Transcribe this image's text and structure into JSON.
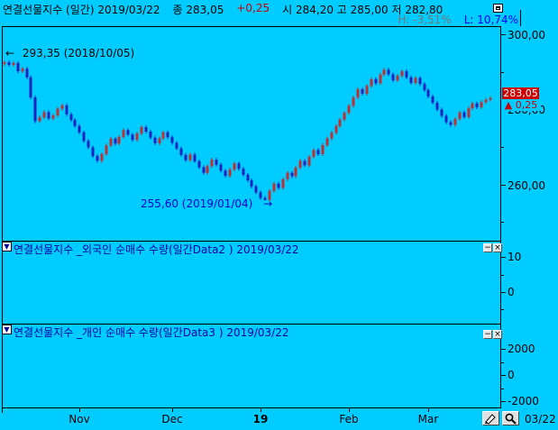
{
  "window": {
    "bg_color": "#00CCFF",
    "title": {
      "instrument": "연결선물지수 (일간) 2019/03/22",
      "close_label": "종",
      "close_value": "283,05",
      "change": "+0,25",
      "open_high_low": "시 284,20 고 285,00 저 282,80",
      "high_pct": "H: -3,51%",
      "low_pct": "L: 10,74%"
    }
  },
  "main_panel": {
    "high_annotation": {
      "arrow": "←",
      "text": "293,35 (2018/10/05)"
    },
    "low_annotation": {
      "text": "255,60 (2019/01/04)",
      "arrow": "→"
    },
    "price_badge": {
      "value": "283,05",
      "change": "▲ 0,25"
    }
  },
  "panel2": {
    "dropdown_glyph": "▼",
    "title": "연결선물지수 _외국인 순매수 수량(일간Data2 ) 2019/03/22",
    "minimize_glyph": "−",
    "close_glyph": "×"
  },
  "panel3": {
    "dropdown_glyph": "▼",
    "title": "연결선물지수 _개인 순매수 수량(일간Data3 ) 2019/03/22",
    "minimize_glyph": "−",
    "close_glyph": "×"
  },
  "bottom_bar": {
    "status_date": "03/22"
  },
  "chart_data": {
    "type": "candlestick",
    "title": "연결선물지수 (일간)",
    "date_range": "2018/10 ~ 2019/03/22",
    "last_session": {
      "date": "2019/03/22",
      "close": 283.05,
      "change": 0.25,
      "open": 284.2,
      "high": 285.0,
      "low": 282.8
    },
    "annotations": [
      {
        "type": "high",
        "price": 293.35,
        "date": "2018/10/05"
      },
      {
        "type": "low",
        "price": 255.6,
        "date": "2019/01/04"
      }
    ],
    "y_axis": {
      "labeled": [
        300,
        280,
        260
      ],
      "labeled_text": [
        "300,00",
        "280,00",
        "260,00"
      ],
      "minor": [
        290,
        270,
        250
      ],
      "ylim": [
        245,
        302
      ]
    },
    "x_ticks": [
      {
        "label": "Nov",
        "index": 17,
        "bold": false
      },
      {
        "label": "Dec",
        "index": 38,
        "bold": false
      },
      {
        "label": "19",
        "index": 58,
        "bold": true
      },
      {
        "label": "Feb",
        "index": 78,
        "bold": false
      },
      {
        "label": "Mar",
        "index": 96,
        "bold": false
      }
    ],
    "closes": [
      292.6,
      291.9,
      292.4,
      290.2,
      290.9,
      288.6,
      283.2,
      276.9,
      277.9,
      279.3,
      277.6,
      278.4,
      280.2,
      281.1,
      278.7,
      277.2,
      275.6,
      273.9,
      271.6,
      269.9,
      267.6,
      266.3,
      268.1,
      270.4,
      272.2,
      270.9,
      272.7,
      274.5,
      273.3,
      271.9,
      273.6,
      275.3,
      274.1,
      272.5,
      271.0,
      272.3,
      273.9,
      272.6,
      271.1,
      269.6,
      267.9,
      266.5,
      268.0,
      266.2,
      264.6,
      263.1,
      264.9,
      266.6,
      265.3,
      263.7,
      262.3,
      264.0,
      265.6,
      264.2,
      262.6,
      261.1,
      259.5,
      257.9,
      256.4,
      255.9,
      258.3,
      260.2,
      259.1,
      261.4,
      263.1,
      262.2,
      264.5,
      266.3,
      265.1,
      267.4,
      269.2,
      268.1,
      270.5,
      272.3,
      273.8,
      275.6,
      277.3,
      279.1,
      281.0,
      283.2,
      285.4,
      284.2,
      286.3,
      288.1,
      287.0,
      289.3,
      290.6,
      289.4,
      287.8,
      289.0,
      290.2,
      288.6,
      287.1,
      288.4,
      286.8,
      285.2,
      283.5,
      281.8,
      280.0,
      278.3,
      276.6,
      275.9,
      277.5,
      279.2,
      278.0,
      280.3,
      281.6,
      280.6,
      282.0,
      282.6,
      283.05
    ],
    "open_rule": "open equals previous close (approximation of dense daily chart)",
    "wick": 0.5,
    "special": {
      "low_wick_index": 59,
      "low_wick_price": 255.6,
      "first_high": 293.0
    },
    "colors": {
      "up": "#C03030",
      "down": "#2222C0",
      "background": "#00CCFF"
    },
    "sub_panels": [
      {
        "name": "panel2",
        "title": "외국인 순매수 수량(일간Data2)",
        "y_labeled": [
          10,
          0
        ],
        "y_labeled_text": [
          "10",
          "0"
        ],
        "y_minor": [
          5,
          -5
        ],
        "series": []
      },
      {
        "name": "panel3",
        "title": "개인 순매수 수량(일간Data3)",
        "y_labeled": [
          2000,
          0,
          -2000
        ],
        "y_labeled_text": [
          "2000",
          "0",
          "-2000"
        ],
        "y_minor": [
          1000,
          -1000
        ],
        "series": []
      }
    ]
  }
}
